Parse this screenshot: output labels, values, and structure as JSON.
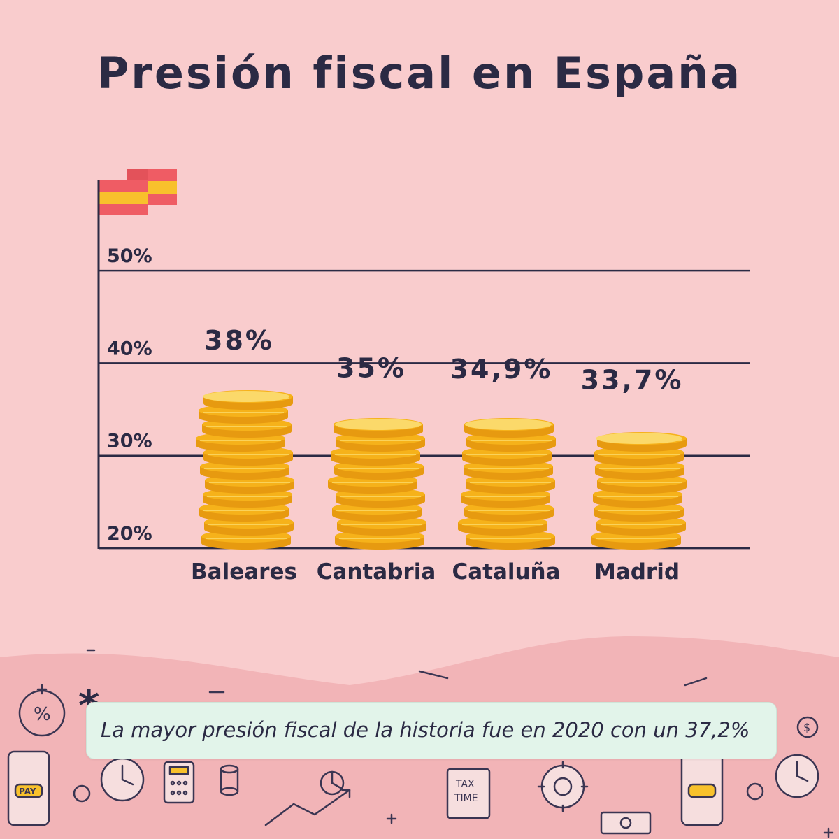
{
  "title": "Presión fiscal en España",
  "chart_data": {
    "type": "bar",
    "categories": [
      "Baleares",
      "Cantabria",
      "Cataluña",
      "Madrid"
    ],
    "values": [
      38,
      35,
      34.9,
      33.7
    ],
    "data_labels": [
      "38%",
      "35%",
      "34,9%",
      "33,7%"
    ],
    "ylim": [
      20,
      50
    ],
    "yticks": [
      20,
      30,
      40,
      50
    ],
    "ytick_labels": [
      "20%",
      "30%",
      "40%",
      "50%"
    ],
    "grid": true,
    "xlabel": "",
    "ylabel": ""
  },
  "note": {
    "marker": "*",
    "text": "La mayor presión fiscal de la historia fue en 2020 con un 37,2%"
  },
  "decor": {
    "pay_label": "PAY",
    "tax_label": "TAX",
    "time_label": "TIME"
  },
  "colors": {
    "background": "#f9cccd",
    "text": "#2b2a44",
    "coin_face": "#f6b21a",
    "coin_light": "#fbd96a",
    "coin_shadow": "#e79a10",
    "flag_red": "#ef5c64",
    "flag_yellow": "#f8c12c",
    "note_bg": "#e2f4ea"
  }
}
